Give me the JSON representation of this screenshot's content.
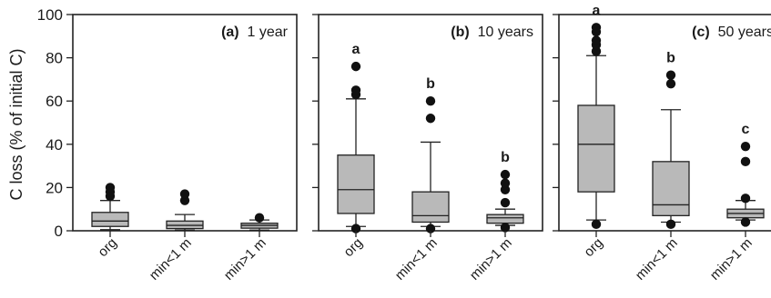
{
  "chart_data": {
    "type": "box",
    "ylabel": "C loss (% of initial C)",
    "ylim": [
      0,
      100
    ],
    "yticks": [
      0,
      20,
      40,
      60,
      80,
      100
    ],
    "categories": [
      "org",
      "min<1 m",
      "min>1 m"
    ],
    "panels": [
      {
        "letter": "(a)",
        "label": "1 year",
        "boxes": [
          {
            "category": "org",
            "whisker_low": 0.5,
            "q1": 2,
            "median": 4.5,
            "q3": 8.5,
            "whisker_high": 14,
            "outliers": [
              16,
              18,
              20
            ],
            "sig": ""
          },
          {
            "category": "min<1 m",
            "whisker_low": 0.3,
            "q1": 1,
            "median": 2.5,
            "q3": 4.5,
            "whisker_high": 7.5,
            "outliers": [
              14,
              17
            ],
            "sig": ""
          },
          {
            "category": "min>1 m",
            "whisker_low": 0.3,
            "q1": 1.2,
            "median": 2.5,
            "q3": 3.5,
            "whisker_high": 5,
            "outliers": [
              6
            ],
            "sig": ""
          }
        ]
      },
      {
        "letter": "(b)",
        "label": "10 years",
        "boxes": [
          {
            "category": "org",
            "whisker_low": 2,
            "q1": 8,
            "median": 19,
            "q3": 35,
            "whisker_high": 61,
            "outliers": [
              1,
              63,
              65,
              76
            ],
            "sig": "a"
          },
          {
            "category": "min<1 m",
            "whisker_low": 2,
            "q1": 4,
            "median": 7,
            "q3": 18,
            "whisker_high": 41,
            "outliers": [
              1,
              52,
              60
            ],
            "sig": "b"
          },
          {
            "category": "min>1 m",
            "whisker_low": 2.5,
            "q1": 3.5,
            "median": 6,
            "q3": 7.5,
            "whisker_high": 10,
            "outliers": [
              1.5,
              13,
              19,
              22,
              26
            ],
            "sig": "b"
          }
        ]
      },
      {
        "letter": "(c)",
        "label": "50 years",
        "boxes": [
          {
            "category": "org",
            "whisker_low": 5,
            "q1": 18,
            "median": 40,
            "q3": 58,
            "whisker_high": 81,
            "outliers": [
              3,
              83,
              86,
              88,
              92,
              94
            ],
            "sig": "a"
          },
          {
            "category": "min<1 m",
            "whisker_low": 4,
            "q1": 7,
            "median": 12,
            "q3": 32,
            "whisker_high": 56,
            "outliers": [
              3,
              68,
              72
            ],
            "sig": "b"
          },
          {
            "category": "min>1 m",
            "whisker_low": 5,
            "q1": 6,
            "median": 8,
            "q3": 10,
            "whisker_high": 14,
            "outliers": [
              4,
              15,
              32,
              39
            ],
            "sig": "c"
          }
        ]
      }
    ]
  }
}
